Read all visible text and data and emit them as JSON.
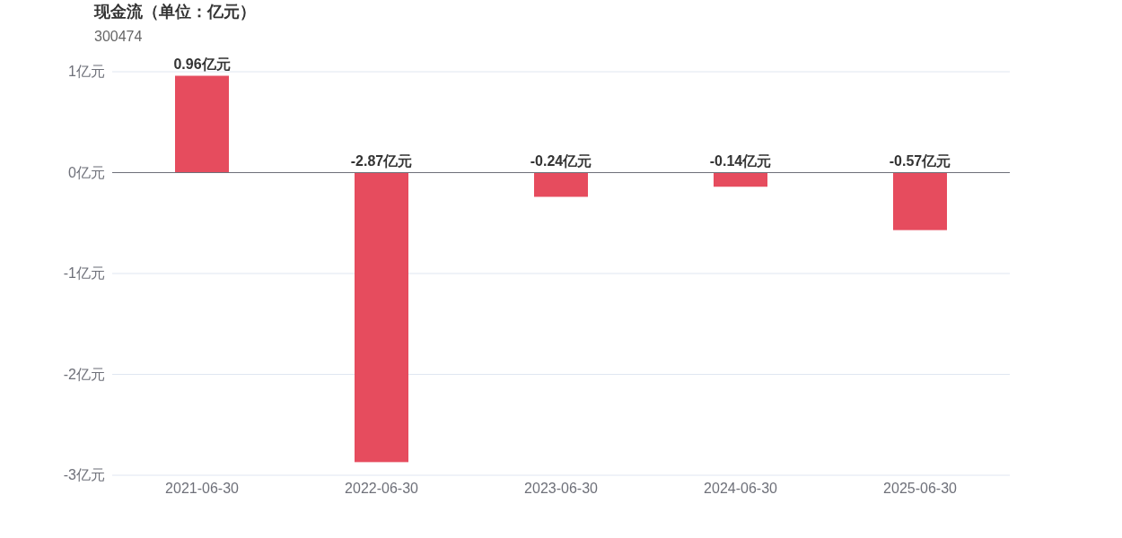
{
  "chart_data": {
    "type": "bar",
    "title": "现金流（单位：亿元）",
    "subtitle": "300474",
    "categories": [
      "2021-06-30",
      "2022-06-30",
      "2023-06-30",
      "2024-06-30",
      "2025-06-30"
    ],
    "values": [
      0.96,
      -2.87,
      -0.24,
      -0.14,
      -0.57
    ],
    "value_labels": [
      "0.96亿元",
      "-2.87亿元",
      "-0.24亿元",
      "-0.14亿元",
      "-0.57亿元"
    ],
    "color": "#e64c5e",
    "ylim": [
      -3,
      1
    ],
    "yticks": [
      {
        "value": -3,
        "label": "-3亿元"
      },
      {
        "value": -2,
        "label": "-2亿元"
      },
      {
        "value": -1,
        "label": "-1亿元"
      },
      {
        "value": 0,
        "label": "0亿元"
      },
      {
        "value": 1,
        "label": "1亿元"
      }
    ],
    "grid": "y"
  }
}
